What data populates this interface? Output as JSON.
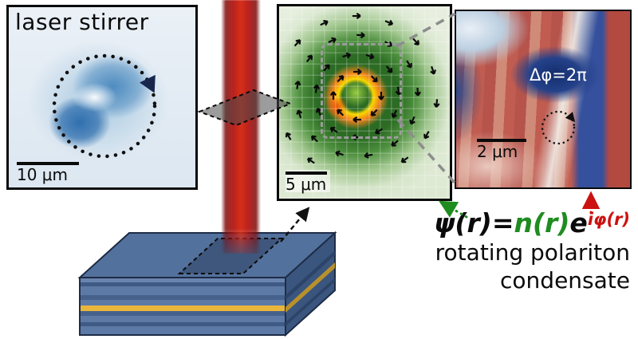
{
  "figure": {
    "stirrer_panel": {
      "title": "laser stirrer",
      "scale_bar": "10 μm"
    },
    "density_panel": {
      "scale_bar": "5 μm"
    },
    "phase_panel": {
      "scale_bar": "2 μm",
      "phase_winding_label": "Δφ=2π"
    },
    "equation": {
      "lhs": "ψ(r)=",
      "density_term": "n(r)",
      "base": "e",
      "exponent": "iφ(r)"
    },
    "caption": {
      "line1": "rotating polariton",
      "line2": "condensate"
    },
    "colors": {
      "density_green": "#1f8c1f",
      "phase_red": "#cc1111",
      "beam_red": "#b51a15",
      "slab_blue": "#5d7aa6",
      "quantum_well_yellow": "#e9b63c"
    }
  }
}
